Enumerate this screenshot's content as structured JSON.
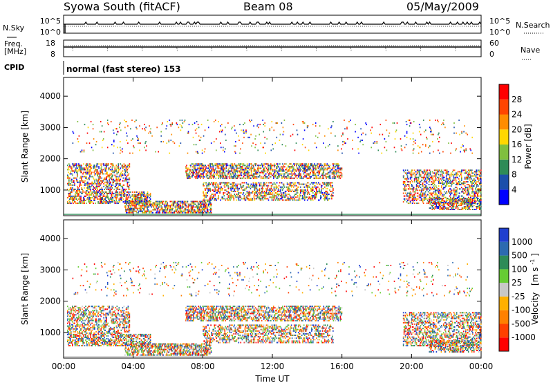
{
  "header": {
    "title": "Syowa South (fitACF)",
    "beam": "Beam 08",
    "date": "05/May/2009"
  },
  "top_panels": {
    "nsky_label": "N.Sky",
    "nsearch_label": "N.Search",
    "nsky_ticks": [
      "10^5",
      "10^0"
    ],
    "freq_label_1": "Freq.",
    "freq_label_2": "[MHz]",
    "freq_ticks": [
      "18",
      "8"
    ],
    "nave_label": "Nave",
    "nave_ticks": [
      "60",
      "0"
    ],
    "cpid_label": "CPID",
    "cpid_text": "normal (fast stereo) 153"
  },
  "chart_data": [
    {
      "type": "heatmap",
      "quantity": "Power",
      "ylabel": "Slant Range [km]",
      "ylim": [
        180,
        4600
      ],
      "yticks": [
        "1000",
        "2000",
        "3000",
        "4000"
      ],
      "xlim_hours": [
        0,
        24
      ],
      "colorbar_label": "Power [dB]",
      "colorbar_ticks": [
        "4",
        "8",
        "12",
        "16",
        "20",
        "24",
        "28"
      ],
      "colors": [
        "#0000ff",
        "#1c4faa",
        "#2e8b57",
        "#7fbf3f",
        "#ffd700",
        "#ff8c00",
        "#ff4500",
        "#ff0000"
      ],
      "scatter_bands": [
        {
          "t0": 0.2,
          "t1": 3.8,
          "r0": 1000,
          "r1": 1900,
          "density": 0.35
        },
        {
          "t0": 0.2,
          "t1": 5.0,
          "r0": 600,
          "r1": 1000,
          "density": 0.45
        },
        {
          "t0": 3.5,
          "t1": 8.5,
          "r0": 300,
          "r1": 700,
          "density": 0.5
        },
        {
          "t0": 7.0,
          "t1": 16.0,
          "r0": 1400,
          "r1": 1900,
          "density": 0.45
        },
        {
          "t0": 8.0,
          "t1": 15.5,
          "r0": 700,
          "r1": 1300,
          "density": 0.35
        },
        {
          "t0": 19.5,
          "t1": 24.0,
          "r0": 600,
          "r1": 1700,
          "density": 0.35
        },
        {
          "t0": 21.0,
          "t1": 24.0,
          "r0": 400,
          "r1": 800,
          "density": 0.4
        },
        {
          "t0": 0.5,
          "t1": 23.5,
          "r0": 2200,
          "r1": 3300,
          "density": 0.03
        }
      ]
    },
    {
      "type": "heatmap",
      "quantity": "Velocity",
      "ylabel": "Slant Range [km]",
      "ylim": [
        180,
        4600
      ],
      "yticks": [
        "1000",
        "2000",
        "3000",
        "4000"
      ],
      "xlim_hours": [
        0,
        24
      ],
      "xticks": [
        "00:00",
        "04:00",
        "08:00",
        "12:00",
        "16:00",
        "20:00",
        "00:00"
      ],
      "xlabel": "Time UT",
      "colorbar_label_1": "Velocity",
      "colorbar_label_2": "[m s",
      "colorbar_label_3": "-1",
      "colorbar_label_4": "]",
      "colorbar_ticks": [
        "1000",
        "500",
        "100",
        "25",
        "-25",
        "-100",
        "-500",
        "-1000"
      ],
      "colors": [
        "#1f3fcf",
        "#2c6ab0",
        "#2e8b57",
        "#66cc33",
        "#c8c8c8",
        "#ffb000",
        "#ff8000",
        "#ff4000",
        "#ff0000"
      ],
      "scatter_bands": [
        {
          "t0": 0.2,
          "t1": 3.8,
          "r0": 1000,
          "r1": 1900,
          "density": 0.35
        },
        {
          "t0": 0.2,
          "t1": 5.0,
          "r0": 600,
          "r1": 1000,
          "density": 0.45
        },
        {
          "t0": 3.5,
          "t1": 8.5,
          "r0": 300,
          "r1": 700,
          "density": 0.5
        },
        {
          "t0": 7.0,
          "t1": 16.0,
          "r0": 1400,
          "r1": 1900,
          "density": 0.45
        },
        {
          "t0": 8.0,
          "t1": 15.5,
          "r0": 700,
          "r1": 1300,
          "density": 0.35
        },
        {
          "t0": 19.5,
          "t1": 24.0,
          "r0": 600,
          "r1": 1700,
          "density": 0.35
        },
        {
          "t0": 21.0,
          "t1": 24.0,
          "r0": 400,
          "r1": 800,
          "density": 0.4
        },
        {
          "t0": 0.5,
          "t1": 23.5,
          "r0": 2200,
          "r1": 3300,
          "density": 0.03
        }
      ]
    }
  ]
}
